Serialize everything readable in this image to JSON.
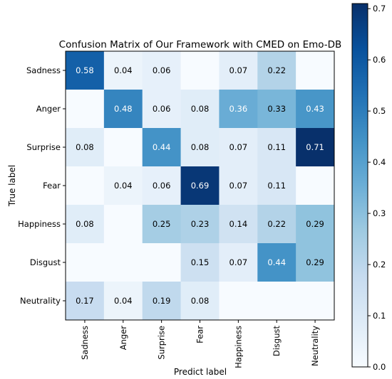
{
  "chart_data": {
    "type": "heatmap",
    "title": "Confusion Matrix of Our Framework with CMED on Emo-DB",
    "xlabel": "Predict label",
    "ylabel": "True label",
    "x_categories": [
      "Sadness",
      "Anger",
      "Surprise",
      "Fear",
      "Happiness",
      "Disgust",
      "Neutrality"
    ],
    "y_categories": [
      "Sadness",
      "Anger",
      "Surprise",
      "Fear",
      "Happiness",
      "Disgust",
      "Neutrality"
    ],
    "values": [
      [
        0.58,
        0.04,
        0.06,
        null,
        0.07,
        0.22,
        null
      ],
      [
        null,
        0.48,
        0.06,
        0.08,
        0.36,
        0.33,
        0.43
      ],
      [
        0.08,
        null,
        0.44,
        0.08,
        0.07,
        0.11,
        0.71
      ],
      [
        null,
        0.04,
        0.06,
        0.69,
        0.07,
        0.11,
        null
      ],
      [
        0.08,
        null,
        0.25,
        0.23,
        0.14,
        0.22,
        0.29
      ],
      [
        null,
        null,
        null,
        0.15,
        0.07,
        0.44,
        0.29
      ],
      [
        0.17,
        0.04,
        0.19,
        0.08,
        null,
        null,
        null
      ]
    ],
    "cell_labels": [
      [
        "0.58",
        "0.04",
        "0.06",
        "",
        "0.07",
        "0.22",
        ""
      ],
      [
        "",
        "0.48",
        "0.06",
        "0.08",
        "0.36",
        "0.33",
        "0.43"
      ],
      [
        "0.08",
        "",
        "0.44",
        "0.08",
        "0.07",
        "0.11",
        "0.71"
      ],
      [
        "",
        "0.04",
        "0.06",
        "0.69",
        "0.07",
        "0.11",
        ""
      ],
      [
        "0.08",
        "",
        "0.25",
        "0.23",
        "0.14",
        "0.22",
        "0.29"
      ],
      [
        "",
        "",
        "",
        "0.15",
        "0.07",
        "0.44",
        "0.29"
      ],
      [
        "0.17",
        "0.04",
        "0.19",
        "0.08",
        "",
        "",
        ""
      ]
    ],
    "colormap": "Blues",
    "vmin": 0,
    "vmax": 0.71,
    "colorbar_ticks": [
      "0.0",
      "0.1",
      "0.2",
      "0.3",
      "0.4",
      "0.5",
      "0.6",
      "0.7"
    ],
    "colorbar_tick_values": [
      0,
      0.1,
      0.2,
      0.3,
      0.4,
      0.5,
      0.6,
      0.7
    ],
    "grid": false
  }
}
